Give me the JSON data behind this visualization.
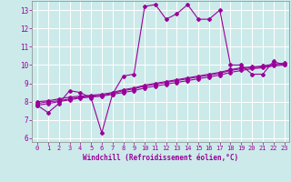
{
  "xlabel": "Windchill (Refroidissement éolien,°C)",
  "bg_color": "#cceaea",
  "grid_color": "#ffffff",
  "line_color": "#990099",
  "xlim": [
    -0.5,
    23.5
  ],
  "ylim": [
    5.8,
    13.5
  ],
  "xticks": [
    0,
    1,
    2,
    3,
    4,
    5,
    6,
    7,
    8,
    9,
    10,
    11,
    12,
    13,
    14,
    15,
    16,
    17,
    18,
    19,
    20,
    21,
    22,
    23
  ],
  "yticks": [
    6,
    7,
    8,
    9,
    10,
    11,
    12,
    13
  ],
  "main_series": [
    7.8,
    7.4,
    7.9,
    8.6,
    8.5,
    8.2,
    6.3,
    8.4,
    9.4,
    9.5,
    13.2,
    13.3,
    12.5,
    12.8,
    13.3,
    12.5,
    12.5,
    13.0,
    10.0,
    10.0,
    9.5,
    9.5,
    10.2,
    10.0
  ],
  "line2": [
    7.8,
    7.9,
    8.0,
    8.1,
    8.2,
    8.25,
    8.3,
    8.4,
    8.5,
    8.6,
    8.75,
    8.85,
    8.95,
    9.05,
    9.15,
    9.25,
    9.35,
    9.45,
    9.6,
    9.7,
    9.8,
    9.85,
    9.95,
    10.0
  ],
  "line3": [
    7.9,
    8.0,
    8.05,
    8.15,
    8.25,
    8.3,
    8.35,
    8.45,
    8.6,
    8.7,
    8.85,
    8.95,
    9.05,
    9.15,
    9.25,
    9.35,
    9.45,
    9.55,
    9.7,
    9.8,
    9.85,
    9.9,
    10.0,
    10.05
  ],
  "line4": [
    8.0,
    8.05,
    8.15,
    8.25,
    8.3,
    8.35,
    8.4,
    8.5,
    8.65,
    8.75,
    8.9,
    9.0,
    9.1,
    9.2,
    9.3,
    9.4,
    9.5,
    9.6,
    9.75,
    9.85,
    9.9,
    9.95,
    10.05,
    10.1
  ]
}
